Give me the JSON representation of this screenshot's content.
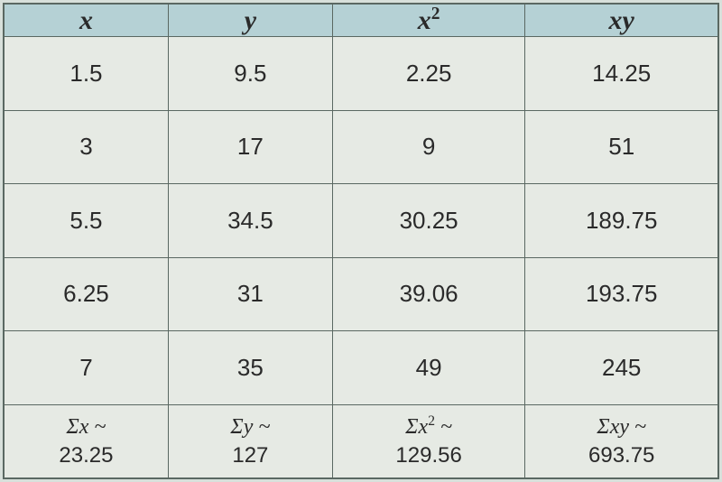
{
  "table": {
    "headers": {
      "x": "x",
      "y": "y",
      "x2_base": "x",
      "x2_sup": "2",
      "xy": "xy"
    },
    "rows": [
      {
        "x": "1.5",
        "y": "9.5",
        "x2": "2.25",
        "xy": "14.25"
      },
      {
        "x": "3",
        "y": "17",
        "x2": "9",
        "xy": "51"
      },
      {
        "x": "5.5",
        "y": "34.5",
        "x2": "30.25",
        "xy": "189.75"
      },
      {
        "x": "6.25",
        "y": "31",
        "x2": "39.06",
        "xy": "193.75"
      },
      {
        "x": "7",
        "y": "35",
        "x2": "49",
        "xy": "245"
      }
    ],
    "summary": {
      "x_label_sym": "Σ",
      "x_label_var": "x ~",
      "x_value": "23.25",
      "y_label_sym": "Σ",
      "y_label_var": "y ~",
      "y_value": "127",
      "x2_label_sym": "Σ",
      "x2_label_var": "x",
      "x2_label_sup": "2",
      "x2_label_tail": " ~",
      "x2_value": "129.56",
      "xy_label_sym": "Σ",
      "xy_label_var": "xy ~",
      "xy_value": "693.75"
    },
    "colors": {
      "header_bg": "#b5d1d5",
      "cell_bg": "#e6eae4",
      "border": "#5a6862",
      "text": "#2a2a2a",
      "page_bg": "#d8e0db"
    }
  }
}
